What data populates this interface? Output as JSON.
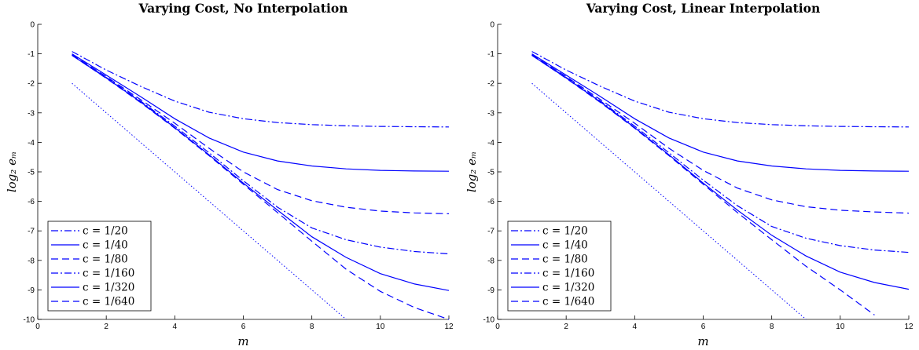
{
  "chart_data": [
    {
      "type": "line",
      "title": "Varying Cost, No Interpolation",
      "xlabel": "m",
      "ylabel": "log₂ eₘ",
      "xlim": [
        0,
        12
      ],
      "ylim": [
        -10,
        0
      ],
      "xticks": [
        "0",
        "2",
        "4",
        "6",
        "8",
        "10",
        "12"
      ],
      "yticks": [
        "0",
        "-1",
        "-2",
        "-3",
        "-4",
        "-5",
        "-6",
        "-7",
        "-8",
        "-9",
        "-10"
      ],
      "legend_position": "bottom-left",
      "grid": false,
      "color": "#0000ff",
      "series": [
        {
          "name": "c = 1/20",
          "dash": "dashdot",
          "x": [
            1,
            2,
            3,
            4,
            5,
            6,
            7,
            8,
            9,
            10,
            11,
            12
          ],
          "values": [
            -0.92,
            -1.55,
            -2.1,
            -2.6,
            -2.98,
            -3.2,
            -3.33,
            -3.4,
            -3.44,
            -3.46,
            -3.47,
            -3.48
          ]
        },
        {
          "name": "c = 1/40",
          "dash": "solid",
          "x": [
            1,
            2,
            3,
            4,
            5,
            6,
            7,
            8,
            9,
            10,
            11,
            12
          ],
          "values": [
            -1.0,
            -1.72,
            -2.45,
            -3.2,
            -3.85,
            -4.33,
            -4.63,
            -4.8,
            -4.9,
            -4.95,
            -4.97,
            -4.98
          ]
        },
        {
          "name": "c = 1/80",
          "dash": "dashed",
          "x": [
            1,
            2,
            3,
            4,
            5,
            6,
            7,
            8,
            9,
            10,
            11,
            12
          ],
          "values": [
            -1.03,
            -1.77,
            -2.55,
            -3.35,
            -4.2,
            -5.0,
            -5.6,
            -5.98,
            -6.2,
            -6.33,
            -6.39,
            -6.42
          ]
        },
        {
          "name": "c = 1/160",
          "dash": "dashdot",
          "x": [
            1,
            2,
            3,
            4,
            5,
            6,
            7,
            8,
            9,
            10,
            11,
            12
          ],
          "values": [
            -1.05,
            -1.8,
            -2.6,
            -3.45,
            -4.35,
            -5.3,
            -6.2,
            -6.9,
            -7.3,
            -7.55,
            -7.7,
            -7.78
          ]
        },
        {
          "name": "c = 1/320",
          "dash": "solid",
          "x": [
            1,
            2,
            3,
            4,
            5,
            6,
            7,
            8,
            9,
            10,
            11,
            12
          ],
          "values": [
            -1.05,
            -1.82,
            -2.63,
            -3.5,
            -4.42,
            -5.38,
            -6.3,
            -7.2,
            -7.9,
            -8.45,
            -8.8,
            -9.02
          ]
        },
        {
          "name": "c = 1/640",
          "dash": "dashed",
          "x": [
            1,
            2,
            3,
            4,
            5,
            6,
            7,
            8,
            9,
            10,
            11,
            12
          ],
          "values": [
            -1.05,
            -1.83,
            -2.65,
            -3.52,
            -4.45,
            -5.42,
            -6.38,
            -7.35,
            -8.3,
            -9.05,
            -9.6,
            -10.0
          ]
        },
        {
          "name": "",
          "dash": "dotted",
          "x": [
            1,
            9
          ],
          "values": [
            -2.0,
            -10.0
          ]
        }
      ]
    },
    {
      "type": "line",
      "title": "Varying Cost, Linear Interpolation",
      "xlabel": "m",
      "ylabel": "log₂ eₘ",
      "xlim": [
        0,
        12
      ],
      "ylim": [
        -10,
        0
      ],
      "xticks": [
        "0",
        "2",
        "4",
        "6",
        "8",
        "10",
        "12"
      ],
      "yticks": [
        "0",
        "-1",
        "-2",
        "-3",
        "-4",
        "-5",
        "-6",
        "-7",
        "-8",
        "-9",
        "-10"
      ],
      "legend_position": "bottom-left",
      "grid": false,
      "color": "#0000ff",
      "series": [
        {
          "name": "c = 1/20",
          "dash": "dashdot",
          "x": [
            1,
            2,
            3,
            4,
            5,
            6,
            7,
            8,
            9,
            10,
            11,
            12
          ],
          "values": [
            -0.92,
            -1.55,
            -2.1,
            -2.6,
            -2.98,
            -3.2,
            -3.33,
            -3.4,
            -3.44,
            -3.46,
            -3.47,
            -3.48
          ]
        },
        {
          "name": "c = 1/40",
          "dash": "solid",
          "x": [
            1,
            2,
            3,
            4,
            5,
            6,
            7,
            8,
            9,
            10,
            11,
            12
          ],
          "values": [
            -1.0,
            -1.72,
            -2.45,
            -3.2,
            -3.85,
            -4.33,
            -4.63,
            -4.8,
            -4.9,
            -4.95,
            -4.97,
            -4.98
          ]
        },
        {
          "name": "c = 1/80",
          "dash": "dashed",
          "x": [
            1,
            2,
            3,
            4,
            5,
            6,
            7,
            8,
            9,
            10,
            11,
            12
          ],
          "values": [
            -1.03,
            -1.77,
            -2.55,
            -3.35,
            -4.2,
            -4.95,
            -5.55,
            -5.95,
            -6.18,
            -6.3,
            -6.36,
            -6.4
          ]
        },
        {
          "name": "c = 1/160",
          "dash": "dashdot",
          "x": [
            1,
            2,
            3,
            4,
            5,
            6,
            7,
            8,
            9,
            10,
            11,
            12
          ],
          "values": [
            -1.05,
            -1.8,
            -2.6,
            -3.45,
            -4.35,
            -5.28,
            -6.15,
            -6.85,
            -7.25,
            -7.5,
            -7.65,
            -7.73
          ]
        },
        {
          "name": "c = 1/320",
          "dash": "solid",
          "x": [
            1,
            2,
            3,
            4,
            5,
            6,
            7,
            8,
            9,
            10,
            11,
            12
          ],
          "values": [
            -1.05,
            -1.82,
            -2.63,
            -3.5,
            -4.42,
            -5.38,
            -6.3,
            -7.15,
            -7.85,
            -8.4,
            -8.75,
            -8.98
          ]
        },
        {
          "name": "c = 1/640",
          "dash": "dashed",
          "x": [
            1,
            2,
            3,
            4,
            5,
            6,
            7,
            8,
            9,
            10,
            11
          ],
          "values": [
            -1.05,
            -1.83,
            -2.65,
            -3.52,
            -4.45,
            -5.42,
            -6.38,
            -7.3,
            -8.2,
            -9.0,
            -9.85
          ]
        },
        {
          "name": "",
          "dash": "dotted",
          "x": [
            1,
            9
          ],
          "values": [
            -2.0,
            -10.0
          ]
        }
      ]
    }
  ]
}
